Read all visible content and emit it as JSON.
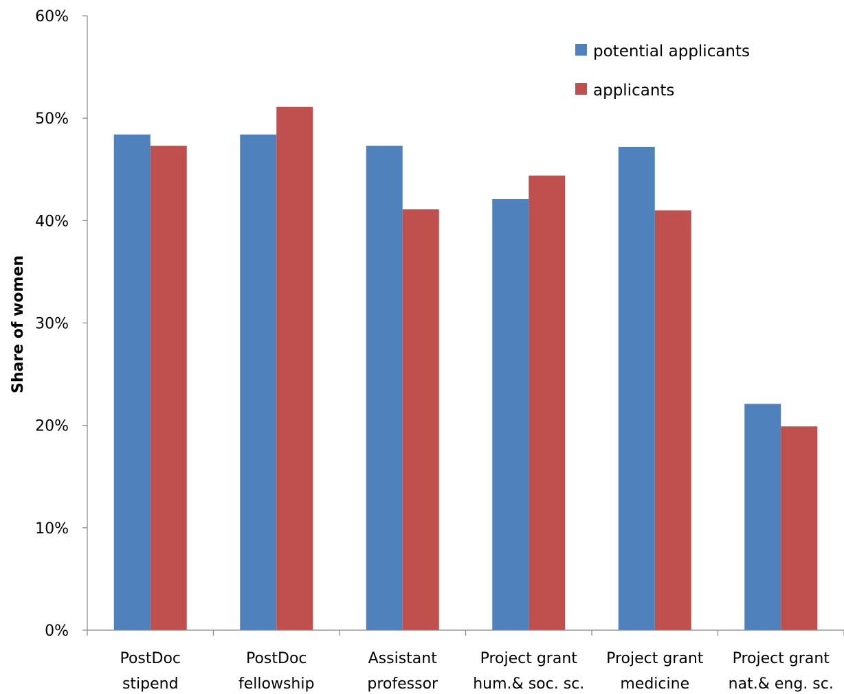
{
  "chart_data": {
    "type": "bar",
    "categories": [
      [
        "PostDoc",
        "stipend"
      ],
      [
        "PostDoc",
        "fellowship"
      ],
      [
        "Assistant",
        "professor"
      ],
      [
        "Project grant",
        "hum.& soc. sc."
      ],
      [
        "Project grant",
        "medicine"
      ],
      [
        "Project grant",
        "nat.& eng. sc."
      ]
    ],
    "series": [
      {
        "name": "potential applicants",
        "color": "#4F81BD",
        "values": [
          48.4,
          48.4,
          47.3,
          42.1,
          47.2,
          22.1
        ]
      },
      {
        "name": "applicants",
        "color": "#C0504D",
        "values": [
          47.3,
          51.1,
          41.1,
          44.4,
          41.0,
          19.9
        ]
      }
    ],
    "title": "",
    "xlabel": "",
    "ylabel": "Share of women",
    "ylim": [
      0,
      60
    ],
    "yticks": [
      "0%",
      "10%",
      "20%",
      "30%",
      "40%",
      "50%",
      "60%"
    ],
    "grid": false,
    "legend_position": "top-right"
  }
}
